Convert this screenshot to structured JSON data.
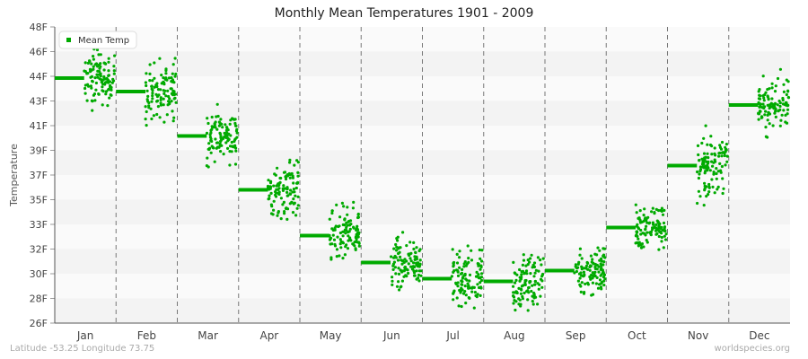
{
  "title": "Monthly Mean Temperatures 1901 - 2009",
  "footer": {
    "location": "Latitude -53.25 Longitude 73.75",
    "source": "worldspecies.org"
  },
  "legend": {
    "label": "Mean Temp",
    "color": "#00aa00"
  },
  "chart_data": {
    "type": "scatter",
    "title": "Monthly Mean Temperatures 1901 - 2009",
    "xlabel": "",
    "ylabel": "Temperature",
    "ylim": [
      26,
      48
    ],
    "yticks": [
      "48F",
      "46F",
      "44F",
      "43F",
      "41F",
      "39F",
      "37F",
      "35F",
      "33F",
      "32F",
      "30F",
      "28F",
      "26F"
    ],
    "categories": [
      "Jan",
      "Feb",
      "Mar",
      "Apr",
      "May",
      "Jun",
      "Jul",
      "Aug",
      "Sep",
      "Oct",
      "Nov",
      "Dec"
    ],
    "series": [
      {
        "name": "Mean Temp",
        "values": [
          44.2,
          43.2,
          39.9,
          35.9,
          32.5,
          30.5,
          29.3,
          29.1,
          29.9,
          33.1,
          37.7,
          42.2
        ]
      }
    ],
    "spread": [
      1.4,
      1.5,
      1.3,
      1.5,
      1.4,
      1.3,
      1.4,
      1.3,
      1.3,
      1.2,
      1.5,
      1.3
    ],
    "grid": "alternating horizontal bands, dashed vertical month separators",
    "legend_position": "top-left"
  }
}
